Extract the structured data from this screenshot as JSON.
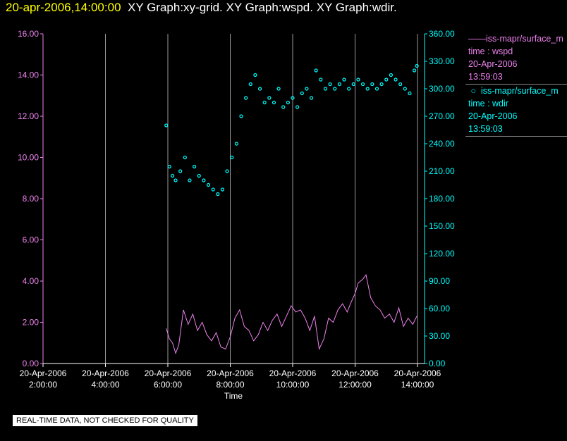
{
  "header": {
    "timestamp": "20-apr-2006,14:00:00",
    "titles": "XY Graph:xy-grid.  XY Graph:wspd.  XY Graph:wdir."
  },
  "notice": "REAL-TIME DATA, NOT CHECKED FOR QUALITY",
  "legend": [
    {
      "marker": "line",
      "source": "iss-mapr/surface_m",
      "field": "time : wspd",
      "date": "20-Apr-2006",
      "time": "13:59:03",
      "color": "#ee82ee"
    },
    {
      "marker": "circle",
      "source": "iss-mapr/surface_m",
      "field": "time : wdir",
      "date": "20-Apr-2006",
      "time": "13:59:03",
      "color": "#00ffff"
    }
  ],
  "chart_data": {
    "type": "line",
    "xlabel": "Time",
    "x_ticks": [
      {
        "date": "20-Apr-2006",
        "time": "2:00:00",
        "hour": 2
      },
      {
        "date": "20-Apr-2006",
        "time": "4:00:00",
        "hour": 4
      },
      {
        "date": "20-Apr-2006",
        "time": "6:00:00",
        "hour": 6
      },
      {
        "date": "20-Apr-2006",
        "time": "8:00:00",
        "hour": 8
      },
      {
        "date": "20-Apr-2006",
        "time": "10:00:00",
        "hour": 10
      },
      {
        "date": "20-Apr-2006",
        "time": "12:00:00",
        "hour": 12
      },
      {
        "date": "20-Apr-2006",
        "time": "14:00:00",
        "hour": 14
      }
    ],
    "xlim": [
      2,
      14
    ],
    "y_left": {
      "lim": [
        0,
        16
      ],
      "ticks": [
        "0.00",
        "2.00",
        "4.00",
        "6.00",
        "8.00",
        "10.00",
        "12.00",
        "14.00",
        "16.00"
      ],
      "color": "#ee82ee"
    },
    "y_right": {
      "lim": [
        0,
        360
      ],
      "ticks": [
        "0.00",
        "30.00",
        "60.00",
        "90.00",
        "120.00",
        "150.00",
        "180.00",
        "210.00",
        "240.00",
        "270.00",
        "300.00",
        "330.00",
        "360.00"
      ],
      "color": "#00ffff"
    },
    "grid": "vertical",
    "series": [
      {
        "name": "time : wspd",
        "axis": "left",
        "style": "line",
        "color": "#ee82ee",
        "x": [
          5.95,
          6.05,
          6.15,
          6.25,
          6.35,
          6.5,
          6.65,
          6.8,
          6.95,
          7.1,
          7.25,
          7.4,
          7.55,
          7.7,
          7.85,
          8.0,
          8.15,
          8.3,
          8.45,
          8.6,
          8.75,
          8.9,
          9.05,
          9.2,
          9.35,
          9.5,
          9.65,
          9.8,
          9.95,
          10.1,
          10.25,
          10.4,
          10.55,
          10.7,
          10.85,
          11.0,
          11.15,
          11.3,
          11.45,
          11.6,
          11.75,
          11.85,
          12.0,
          12.1,
          12.25,
          12.35,
          12.5,
          12.65,
          12.8,
          12.95,
          13.1,
          13.25,
          13.4,
          13.55,
          13.7,
          13.85,
          13.98
        ],
        "y": [
          1.7,
          1.2,
          1.0,
          0.5,
          0.9,
          2.6,
          1.9,
          2.4,
          1.6,
          2.0,
          1.4,
          1.1,
          1.5,
          0.8,
          0.7,
          1.3,
          2.2,
          2.6,
          1.8,
          1.6,
          1.1,
          1.4,
          2.0,
          1.6,
          2.1,
          2.4,
          1.8,
          2.3,
          2.8,
          2.5,
          2.6,
          2.2,
          1.6,
          2.3,
          0.7,
          1.2,
          2.2,
          2.0,
          2.6,
          2.9,
          2.5,
          2.9,
          3.4,
          3.9,
          4.1,
          4.3,
          3.2,
          2.8,
          2.6,
          2.2,
          2.4,
          2.0,
          2.7,
          1.8,
          2.2,
          1.9,
          2.3
        ]
      },
      {
        "name": "time : wdir",
        "axis": "right",
        "style": "markers",
        "color": "#00ffff",
        "x": [
          5.95,
          6.05,
          6.15,
          6.25,
          6.4,
          6.55,
          6.7,
          6.85,
          7.0,
          7.15,
          7.3,
          7.45,
          7.6,
          7.75,
          7.9,
          8.05,
          8.2,
          8.35,
          8.5,
          8.65,
          8.8,
          8.95,
          9.1,
          9.25,
          9.4,
          9.55,
          9.7,
          9.85,
          10.0,
          10.15,
          10.3,
          10.45,
          10.6,
          10.75,
          10.9,
          11.05,
          11.2,
          11.35,
          11.5,
          11.65,
          11.8,
          11.95,
          12.1,
          12.25,
          12.4,
          12.55,
          12.7,
          12.85,
          13.0,
          13.15,
          13.3,
          13.45,
          13.6,
          13.75,
          13.9,
          13.98
        ],
        "y": [
          260,
          215,
          205,
          200,
          210,
          225,
          200,
          215,
          205,
          200,
          195,
          190,
          185,
          190,
          210,
          225,
          240,
          270,
          290,
          305,
          315,
          300,
          285,
          290,
          285,
          300,
          280,
          285,
          290,
          280,
          295,
          300,
          290,
          320,
          310,
          300,
          305,
          300,
          305,
          310,
          300,
          305,
          310,
          305,
          300,
          305,
          300,
          305,
          310,
          315,
          310,
          305,
          300,
          295,
          320,
          325
        ]
      }
    ]
  }
}
